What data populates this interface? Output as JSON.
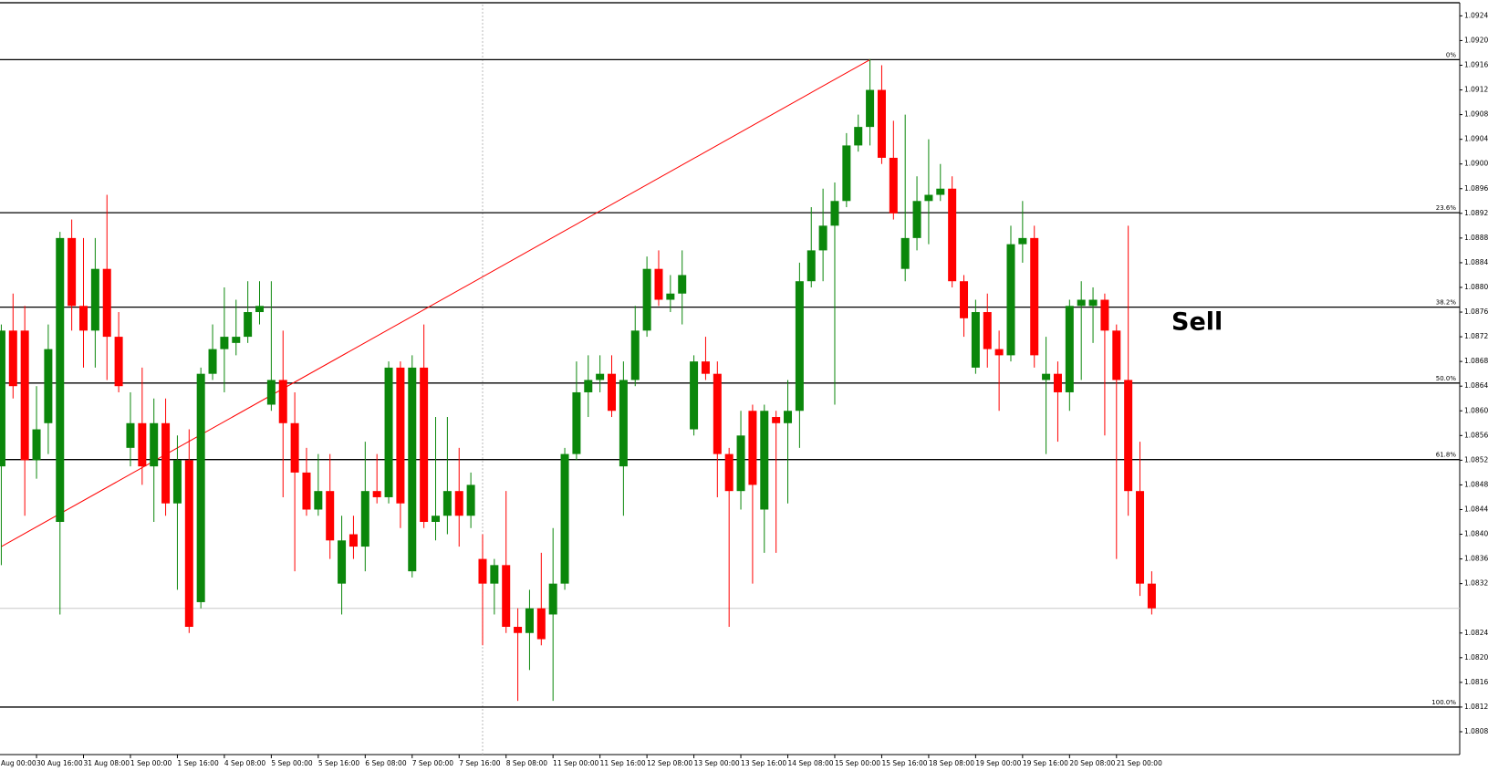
{
  "chart_data": {
    "type": "candlestick",
    "up_color": "#0b870b",
    "down_color": "#ff0000",
    "grid": false,
    "annotation": "Sell",
    "categories": [
      "Aug 00:00",
      null,
      null,
      null,
      "30 Aug 16:00",
      null,
      null,
      null,
      "31 Aug 08:00",
      null,
      null,
      null,
      "1 Sep 00:00",
      null,
      null,
      null,
      "1 Sep 16:00",
      null,
      null,
      null,
      "4 Sep 08:00",
      null,
      null,
      null,
      "5 Sep 00:00",
      null,
      null,
      null,
      "5 Sep 16:00",
      null,
      null,
      null,
      "6 Sep 08:00",
      null,
      null,
      null,
      "7 Sep 00:00",
      null,
      null,
      null,
      "7 Sep 16:00",
      null,
      null,
      null,
      "8 Sep 08:00",
      null,
      null,
      null,
      "11 Sep 00:00",
      null,
      null,
      null,
      "11 Sep 16:00",
      null,
      null,
      null,
      "12 Sep 08:00",
      null,
      null,
      null,
      "13 Sep 00:00",
      null,
      null,
      null,
      "13 Sep 16:00",
      null,
      null,
      null,
      "14 Sep 08:00",
      null,
      null,
      null,
      "15 Sep 00:00",
      null,
      null,
      null,
      "15 Sep 16:00",
      null,
      null,
      null,
      "18 Sep 08:00",
      null,
      null,
      null,
      "19 Sep 00:00",
      null,
      null,
      null,
      "19 Sep 16:00",
      null,
      null,
      null,
      "20 Sep 08:00",
      null,
      null,
      null,
      "21 Sep 00:00",
      null,
      null,
      null
    ],
    "open": [
      null,
      1.0851,
      1.0873,
      1.0873,
      1.0852,
      1.0858,
      1.0842,
      1.0888,
      1.0877,
      1.0873,
      1.0883,
      1.0872,
      1.0854,
      1.0858,
      1.0851,
      1.0858,
      1.0845,
      1.0852,
      1.0829,
      1.0866,
      1.087,
      1.0871,
      1.0872,
      1.0876,
      1.0861,
      1.0865,
      1.0858,
      1.085,
      1.0844,
      1.0847,
      1.0832,
      1.084,
      1.0838,
      1.0847,
      1.0846,
      1.0867,
      1.0834,
      1.0867,
      1.0842,
      1.0843,
      1.0847,
      1.0843,
      1.0836,
      1.0832,
      1.0835,
      1.0825,
      1.0824,
      1.0828,
      1.0827,
      1.0832,
      1.0853,
      1.0863,
      1.0865,
      1.0866,
      1.0851,
      1.0865,
      1.0873,
      1.0883,
      1.0878,
      1.0879,
      1.0857,
      1.0868,
      1.0866,
      1.0853,
      1.0847,
      1.086,
      1.0844,
      1.0859,
      1.0858,
      1.086,
      1.0881,
      1.0886,
      1.089,
      1.0894,
      1.0903,
      1.0906,
      1.0912,
      1.0901,
      1.0883,
      1.0888,
      1.0894,
      1.0895,
      1.0896,
      1.0881,
      1.0867,
      1.0876,
      1.087,
      1.0869,
      1.0887,
      1.0888,
      1.0865,
      1.0866,
      1.0863,
      1.0877,
      1.0877,
      1.0878,
      1.0873,
      1.0865,
      1.0847,
      1.0832
    ],
    "high": [
      null,
      1.0874,
      1.0879,
      1.0877,
      1.0864,
      1.0874,
      1.0889,
      1.0891,
      1.0888,
      1.0888,
      1.0895,
      1.0876,
      1.0863,
      1.0867,
      1.0862,
      1.0862,
      1.0856,
      1.0857,
      1.0867,
      1.0874,
      1.088,
      1.0878,
      1.0881,
      1.0881,
      1.0881,
      1.0873,
      1.0863,
      1.0854,
      1.0853,
      1.0853,
      1.0843,
      1.0843,
      1.0855,
      1.0853,
      1.0868,
      1.0868,
      1.0869,
      1.0874,
      1.0859,
      1.0859,
      1.0854,
      1.085,
      1.084,
      1.0836,
      1.0847,
      1.0828,
      1.0831,
      1.0837,
      1.0841,
      1.0854,
      1.0868,
      1.0869,
      1.0869,
      1.0869,
      1.0868,
      1.0877,
      1.0885,
      1.0886,
      1.0882,
      1.0886,
      1.0869,
      1.0872,
      1.0868,
      1.0854,
      1.086,
      1.0861,
      1.0861,
      1.086,
      1.0865,
      1.0884,
      1.0893,
      1.0896,
      1.0897,
      1.0905,
      1.0908,
      1.0917,
      1.0916,
      1.0907,
      1.0908,
      1.0898,
      1.0904,
      1.09,
      1.0898,
      1.0882,
      1.0878,
      1.0879,
      1.0873,
      1.089,
      1.0894,
      1.089,
      1.0872,
      1.0868,
      1.0878,
      1.0881,
      1.088,
      1.0879,
      1.0874,
      1.089,
      1.0855,
      1.0834
    ],
    "low": [
      null,
      1.0835,
      1.0862,
      1.0843,
      1.0849,
      1.0853,
      1.0827,
      1.0873,
      1.0867,
      1.0867,
      1.0865,
      1.0863,
      1.0851,
      1.0848,
      1.0842,
      1.0843,
      1.0831,
      1.0824,
      1.0828,
      1.0865,
      1.0863,
      1.0869,
      1.0871,
      1.0874,
      1.086,
      1.0846,
      1.0834,
      1.0843,
      1.0843,
      1.0836,
      1.0827,
      1.0836,
      1.0834,
      1.0845,
      1.0845,
      1.0841,
      1.0833,
      1.0841,
      1.0839,
      1.084,
      1.0838,
      1.0841,
      1.0822,
      1.0827,
      1.0824,
      1.0813,
      1.0818,
      1.0822,
      1.0813,
      1.0831,
      1.0852,
      1.0859,
      1.0863,
      1.0859,
      1.0843,
      1.0864,
      1.0872,
      1.0877,
      1.0876,
      1.0874,
      1.0856,
      1.0865,
      1.0846,
      1.0825,
      1.0844,
      1.0832,
      1.0837,
      1.0837,
      1.0845,
      1.0854,
      1.088,
      1.0881,
      1.0861,
      1.0893,
      1.0902,
      1.0903,
      1.09,
      1.0891,
      1.0881,
      1.0886,
      1.0887,
      1.0894,
      1.088,
      1.0872,
      1.0866,
      1.0867,
      1.086,
      1.0868,
      1.0884,
      1.0867,
      1.0853,
      1.0855,
      1.086,
      1.0865,
      1.0871,
      1.0856,
      1.0836,
      1.0843,
      1.083,
      1.0827
    ],
    "close": [
      null,
      1.0873,
      1.0864,
      1.0852,
      1.0857,
      1.087,
      1.0888,
      1.0877,
      1.0873,
      1.0883,
      1.0872,
      1.0864,
      1.0858,
      1.0851,
      1.0858,
      1.0845,
      1.0852,
      1.0825,
      1.0866,
      1.087,
      1.0872,
      1.0872,
      1.0876,
      1.0877,
      1.0865,
      1.0858,
      1.085,
      1.0844,
      1.0847,
      1.0839,
      1.0839,
      1.0838,
      1.0847,
      1.0846,
      1.0867,
      1.0845,
      1.0867,
      1.0842,
      1.0843,
      1.0847,
      1.0843,
      1.0848,
      1.0832,
      1.0835,
      1.0825,
      1.0824,
      1.0828,
      1.0823,
      1.0832,
      1.0853,
      1.0863,
      1.0865,
      1.0866,
      1.086,
      1.0865,
      1.0873,
      1.0883,
      1.0878,
      1.0879,
      1.0882,
      1.0868,
      1.0866,
      1.0853,
      1.0847,
      1.0856,
      1.0848,
      1.086,
      1.0858,
      1.086,
      1.0881,
      1.0886,
      1.089,
      1.0894,
      1.0903,
      1.0906,
      1.0912,
      1.0901,
      1.0892,
      1.0888,
      1.0894,
      1.0895,
      1.0896,
      1.0881,
      1.0875,
      1.0876,
      1.087,
      1.0869,
      1.0887,
      1.0888,
      1.0869,
      1.0866,
      1.0863,
      1.0877,
      1.0878,
      1.0878,
      1.0873,
      1.0865,
      1.0847,
      1.0832,
      1.0828
    ],
    "ylim": [
      1.08043,
      1.09258
    ],
    "yticks": [
      {
        "value": 1.0924,
        "label": "1.09240"
      },
      {
        "value": 1.092,
        "label": "1.09200"
      },
      {
        "value": 1.0916,
        "label": "1.09160"
      },
      {
        "value": 1.0912,
        "label": "1.09120"
      },
      {
        "value": 1.0908,
        "label": "1.09080"
      },
      {
        "value": 1.0904,
        "label": "1.09040"
      },
      {
        "value": 1.09,
        "label": "1.09000"
      },
      {
        "value": 1.0896,
        "label": "1.08960"
      },
      {
        "value": 1.0892,
        "label": "1.08920"
      },
      {
        "value": 1.0888,
        "label": "1.08880"
      },
      {
        "value": 1.0884,
        "label": "1.08840"
      },
      {
        "value": 1.088,
        "label": "1.08800"
      },
      {
        "value": 1.0876,
        "label": "1.08760"
      },
      {
        "value": 1.0872,
        "label": "1.08720"
      },
      {
        "value": 1.0868,
        "label": "1.08680"
      },
      {
        "value": 1.0864,
        "label": "1.08640"
      },
      {
        "value": 1.086,
        "label": "1.08600"
      },
      {
        "value": 1.0856,
        "label": "1.08560"
      },
      {
        "value": 1.0852,
        "label": "1.08520"
      },
      {
        "value": 1.0848,
        "label": "1.08480"
      },
      {
        "value": 1.0844,
        "label": "1.08440"
      },
      {
        "value": 1.084,
        "label": "1.08400"
      },
      {
        "value": 1.0836,
        "label": "1.08360"
      },
      {
        "value": 1.0832,
        "label": "1.08320"
      },
      {
        "value": 1.0824,
        "label": "1.08240"
      },
      {
        "value": 1.082,
        "label": "1.08200"
      },
      {
        "value": 1.0816,
        "label": "1.08160"
      },
      {
        "value": 1.0812,
        "label": "1.08120"
      },
      {
        "value": 1.0808,
        "label": "1.08080"
      }
    ],
    "levels": [
      {
        "value": 1.09169,
        "label": "0%"
      },
      {
        "value": 1.08921,
        "label": "23.6%"
      },
      {
        "value": 1.08768,
        "label": "38.2%"
      },
      {
        "value": 1.08645,
        "label": "50.0%"
      },
      {
        "value": 1.08521,
        "label": "61.8%"
      },
      {
        "value": 1.0812,
        "label": "100.0%"
      }
    ],
    "trendline": {
      "color": "#ff0000",
      "x": [
        1,
        75
      ],
      "y": [
        1.0838,
        1.09169
      ]
    }
  }
}
